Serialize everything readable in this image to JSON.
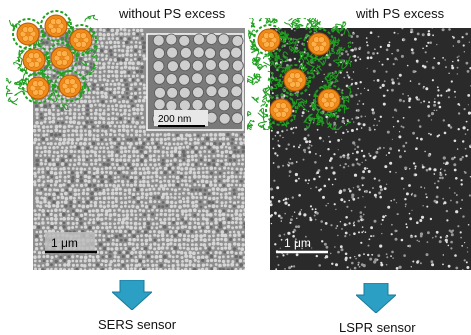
{
  "left_panel": {
    "title": "without PS excess",
    "scale_bar_label": "1 μm",
    "inset_scale_label": "200 nm",
    "caption": "SERS sensor"
  },
  "right_panel": {
    "title": "with PS excess",
    "scale_bar_label": "1 μm",
    "caption": "LSPR sensor"
  },
  "colors": {
    "nanoparticle": "#f08a1a",
    "polymer_chain": "#1fa01f",
    "arrow": "#2b9fc4"
  }
}
